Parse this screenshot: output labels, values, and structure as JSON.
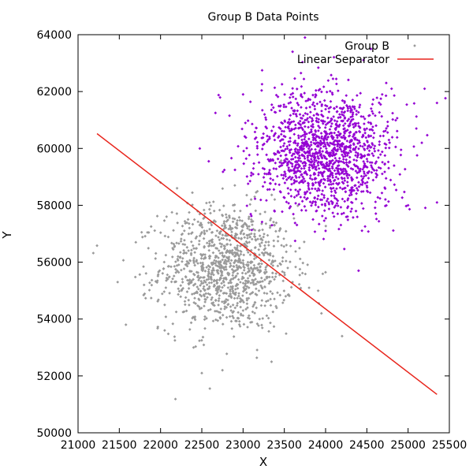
{
  "chart_data": {
    "type": "scatter",
    "title": "Group B Data Points",
    "xlabel": "X",
    "ylabel": "Y",
    "xlim": [
      21000,
      25500
    ],
    "ylim": [
      50000,
      64000
    ],
    "xticks": [
      21000,
      21500,
      22000,
      22500,
      23000,
      23500,
      24000,
      24500,
      25000,
      25500
    ],
    "yticks": [
      50000,
      52000,
      54000,
      56000,
      58000,
      60000,
      62000,
      64000
    ],
    "grid": false,
    "legend_position": "top-right",
    "series": [
      {
        "name": "Group B",
        "kind": "points",
        "color": "#9a9a9a",
        "cluster": {
          "center": [
            22800,
            55800
          ],
          "spread": [
            400,
            1100
          ],
          "count": 1100
        },
        "points": [
          [
            21230,
            56580
          ],
          [
            21480,
            55300
          ],
          [
            21580,
            53800
          ],
          [
            21700,
            56700
          ],
          [
            21800,
            55200
          ],
          [
            22000,
            58800
          ],
          [
            22050,
            53600
          ],
          [
            22200,
            58600
          ],
          [
            22350,
            57200
          ],
          [
            22400,
            53000
          ],
          [
            22500,
            52100
          ],
          [
            22650,
            57800
          ],
          [
            22750,
            52200
          ],
          [
            22900,
            58700
          ],
          [
            23100,
            57500
          ],
          [
            23200,
            54000
          ],
          [
            23400,
            55600
          ],
          [
            23600,
            55300
          ],
          [
            23800,
            55100
          ],
          [
            23950,
            54200
          ],
          [
            24200,
            53400
          ]
        ]
      },
      {
        "name": "",
        "kind": "points",
        "color": "#9400d3",
        "cluster": {
          "center": [
            24000,
            59900
          ],
          "spread": [
            420,
            1100
          ],
          "count": 1400
        },
        "points": [
          [
            23000,
            61900
          ],
          [
            23350,
            57300
          ],
          [
            23600,
            63400
          ],
          [
            23750,
            63900
          ],
          [
            24000,
            57100
          ],
          [
            24400,
            55700
          ],
          [
            24550,
            63500
          ],
          [
            24800,
            62100
          ],
          [
            25000,
            58000
          ],
          [
            25100,
            60700
          ],
          [
            25200,
            62100
          ],
          [
            25350,
            61600
          ],
          [
            25350,
            58100
          ]
        ]
      },
      {
        "name": "Linear Separator",
        "kind": "line",
        "color": "#e8241b",
        "points": [
          [
            21230,
            60520
          ],
          [
            25350,
            51350
          ]
        ]
      }
    ]
  }
}
